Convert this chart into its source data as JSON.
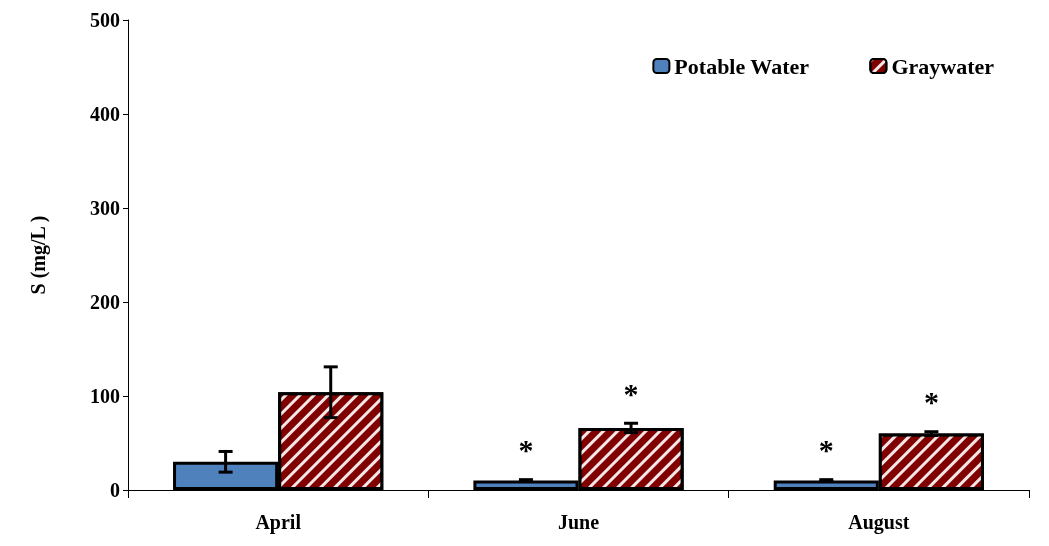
{
  "chart_data": {
    "type": "bar",
    "ylabel": "S (mg/L )",
    "categories": [
      "April",
      "June",
      "August"
    ],
    "series": [
      {
        "name": "Potable Water",
        "color": "#4f81bd",
        "values": [
          30,
          10,
          10
        ],
        "errors": [
          11,
          1,
          1
        ]
      },
      {
        "name": "Graywater",
        "color": "#800000",
        "values": [
          104,
          66,
          60
        ],
        "errors": [
          27,
          5,
          2
        ]
      }
    ],
    "ylim": [
      0,
      500
    ],
    "yticks": [
      0,
      100,
      200,
      300,
      400,
      500
    ],
    "grid": false,
    "legend": "top right",
    "annotations": [
      {
        "text": "*",
        "x": "June",
        "y": 10
      },
      {
        "text": "*",
        "x": "June",
        "y": 66
      },
      {
        "text": "*",
        "x": "August",
        "y": 10
      },
      {
        "text": "*",
        "x": "August",
        "y": 60
      }
    ]
  }
}
